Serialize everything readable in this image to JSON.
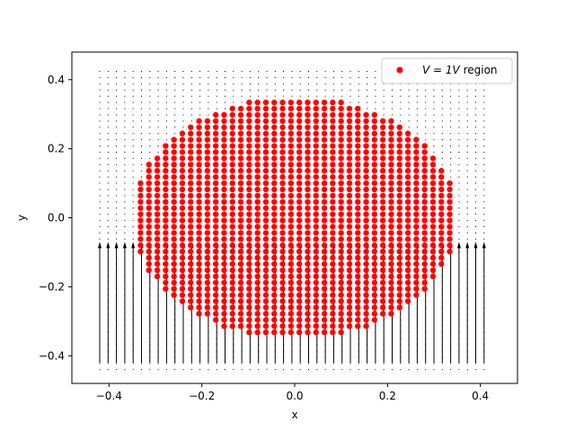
{
  "chart_data": {
    "type": "scatter",
    "title": "",
    "xlabel": "x",
    "ylabel": "y",
    "xlim": [
      -0.48,
      0.48
    ],
    "ylim": [
      -0.48,
      0.48
    ],
    "xticks": [
      -0.4,
      -0.2,
      0.0,
      0.2,
      0.4
    ],
    "yticks": [
      -0.4,
      -0.2,
      0.0,
      0.2,
      0.4
    ],
    "xtick_labels": [
      "−0.4",
      "−0.2",
      "0.0",
      "0.2",
      "0.4"
    ],
    "ytick_labels": [
      "−0.4",
      "−0.2",
      "0.0",
      "0.2",
      "0.4"
    ],
    "grid": false,
    "legend_position": "top-right",
    "series": [
      {
        "name": "V = 1V region",
        "type": "scatter",
        "color": "#ff0000",
        "marker": "circle",
        "region": {
          "shape": "disc",
          "center": [
            0.0,
            0.0
          ],
          "radius": 0.35,
          "spacing": 0.018
        }
      },
      {
        "type": "quiver",
        "color": "#000000",
        "description_of_field": "grid of arrows pointing +y; large arrows in lower band (y from -0.42 to about -0.06), tiny elsewhere",
        "grid": {
          "xmin": -0.42,
          "xmax": 0.42,
          "ymin": -0.44,
          "ymax": 0.44,
          "spacing": 0.018
        },
        "big_arrow_rows": {
          "x_spacing": 0.018,
          "base_y": -0.42,
          "top_y": -0.07,
          "x_range": [
            -0.42,
            0.42
          ]
        }
      }
    ]
  },
  "legend": {
    "label_prefix": "V = 1V",
    "label_suffix": " region"
  }
}
